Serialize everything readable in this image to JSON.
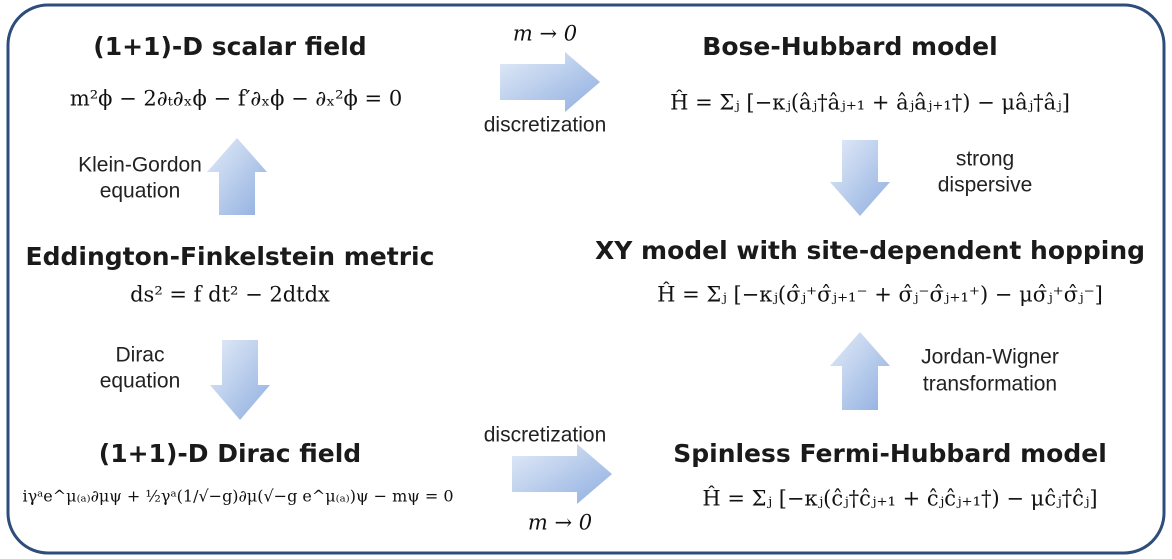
{
  "nodes": [
    {
      "title": "(1+1)-D scalar field",
      "equation": "m²ϕ − 2∂ₜ∂ₓϕ − f′∂ₓϕ − ∂ₓ²ϕ = 0"
    },
    {
      "title": "Bose-Hubbard model",
      "equation": "Ĥ = Σⱼ [−κⱼ(âⱼ†âⱼ₊₁ + âⱼâⱼ₊₁†) − μâⱼ†âⱼ]"
    },
    {
      "title": "Eddington-Finkelstein metric",
      "equation": "ds² = f dt² − 2dtdx"
    },
    {
      "title": "XY model with site-dependent hopping",
      "equation": "Ĥ = Σⱼ [−κⱼ(σ̂ⱼ⁺σ̂ⱼ₊₁⁻ + σ̂ⱼ⁻σ̂ⱼ₊₁⁺) − μσ̂ⱼ⁺σ̂ⱼ⁻]"
    },
    {
      "title": "(1+1)-D Dirac field",
      "equation": "iγᵃe^μ₍ₐ₎∂μψ + ½γᵃ(1/√−g)∂μ(√−g e^μ₍ₐ₎)ψ − mψ = 0"
    },
    {
      "title": "Spinless Fermi-Hubbard model",
      "equation": "Ĥ = Σⱼ [−κⱼ(ĉⱼ†ĉⱼ₊₁ + ĉⱼĉⱼ₊₁†) − μĉⱼ†ĉⱼ]"
    }
  ],
  "edges": [
    {
      "labels": [
        "m → 0",
        "discretization"
      ]
    },
    {
      "labels": [
        "Klein-Gordon",
        "equation"
      ]
    },
    {
      "labels": [
        "strong",
        "dispersive"
      ]
    },
    {
      "labels": [
        "Dirac",
        "equation"
      ]
    },
    {
      "labels": [
        "Jordan-Wigner",
        "transformation"
      ]
    },
    {
      "labels": [
        "discretization",
        "m → 0"
      ]
    }
  ]
}
